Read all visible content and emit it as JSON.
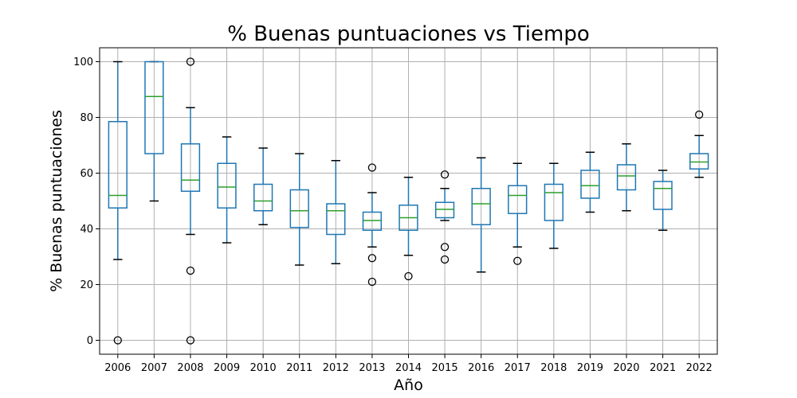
{
  "chart_data": {
    "type": "boxplot",
    "title": "% Buenas puntuaciones vs Tiempo",
    "xlabel": "Año",
    "ylabel": "% Buenas puntuaciones",
    "ylim": [
      -5,
      105
    ],
    "yticks": [
      0,
      20,
      40,
      60,
      80,
      100
    ],
    "grid": true,
    "colors": {
      "box": "#1f77b4",
      "median": "#2ca02c",
      "whisker": "#1f77b4",
      "cap": "#000000",
      "flier": "#000000",
      "grid": "#b0b0b0"
    },
    "categories": [
      "2006",
      "2007",
      "2008",
      "2009",
      "2010",
      "2011",
      "2012",
      "2013",
      "2014",
      "2015",
      "2016",
      "2017",
      "2018",
      "2019",
      "2020",
      "2021",
      "2022"
    ],
    "boxes": [
      {
        "whislo": 29,
        "q1": 47.5,
        "med": 52,
        "q3": 78.5,
        "whishi": 100,
        "fliers": [
          0
        ]
      },
      {
        "whislo": 50,
        "q1": 67,
        "med": 87.5,
        "q3": 100,
        "whishi": 100,
        "fliers": []
      },
      {
        "whislo": 38,
        "q1": 53.5,
        "med": 57.5,
        "q3": 70.5,
        "whishi": 83.5,
        "fliers": [
          100,
          25,
          0
        ]
      },
      {
        "whislo": 35,
        "q1": 47.5,
        "med": 55,
        "q3": 63.5,
        "whishi": 73,
        "fliers": []
      },
      {
        "whislo": 41.5,
        "q1": 46.5,
        "med": 50,
        "q3": 56,
        "whishi": 69,
        "fliers": []
      },
      {
        "whislo": 27,
        "q1": 40.5,
        "med": 46.5,
        "q3": 54,
        "whishi": 67,
        "fliers": []
      },
      {
        "whislo": 27.5,
        "q1": 38,
        "med": 46.5,
        "q3": 49,
        "whishi": 64.5,
        "fliers": []
      },
      {
        "whislo": 33.5,
        "q1": 39.5,
        "med": 43,
        "q3": 46,
        "whishi": 53,
        "fliers": [
          62,
          29.5,
          21
        ]
      },
      {
        "whislo": 30.5,
        "q1": 39.5,
        "med": 44,
        "q3": 48.5,
        "whishi": 58.5,
        "fliers": [
          23
        ]
      },
      {
        "whislo": 43,
        "q1": 44,
        "med": 47,
        "q3": 49.5,
        "whishi": 54.5,
        "fliers": [
          59.5,
          33.5,
          29
        ]
      },
      {
        "whislo": 24.5,
        "q1": 41.5,
        "med": 49,
        "q3": 54.5,
        "whishi": 65.5,
        "fliers": []
      },
      {
        "whislo": 33.5,
        "q1": 45.5,
        "med": 52,
        "q3": 55.5,
        "whishi": 63.5,
        "fliers": [
          28.5
        ]
      },
      {
        "whislo": 33,
        "q1": 43,
        "med": 53,
        "q3": 56,
        "whishi": 63.5,
        "fliers": []
      },
      {
        "whislo": 46,
        "q1": 51,
        "med": 55.5,
        "q3": 61,
        "whishi": 67.5,
        "fliers": []
      },
      {
        "whislo": 46.5,
        "q1": 54,
        "med": 59,
        "q3": 63,
        "whishi": 70.5,
        "fliers": []
      },
      {
        "whislo": 39.5,
        "q1": 47,
        "med": 54.5,
        "q3": 57,
        "whishi": 61,
        "fliers": []
      },
      {
        "whislo": 58.5,
        "q1": 61.5,
        "med": 64,
        "q3": 67,
        "whishi": 73.5,
        "fliers": [
          81
        ]
      }
    ]
  }
}
